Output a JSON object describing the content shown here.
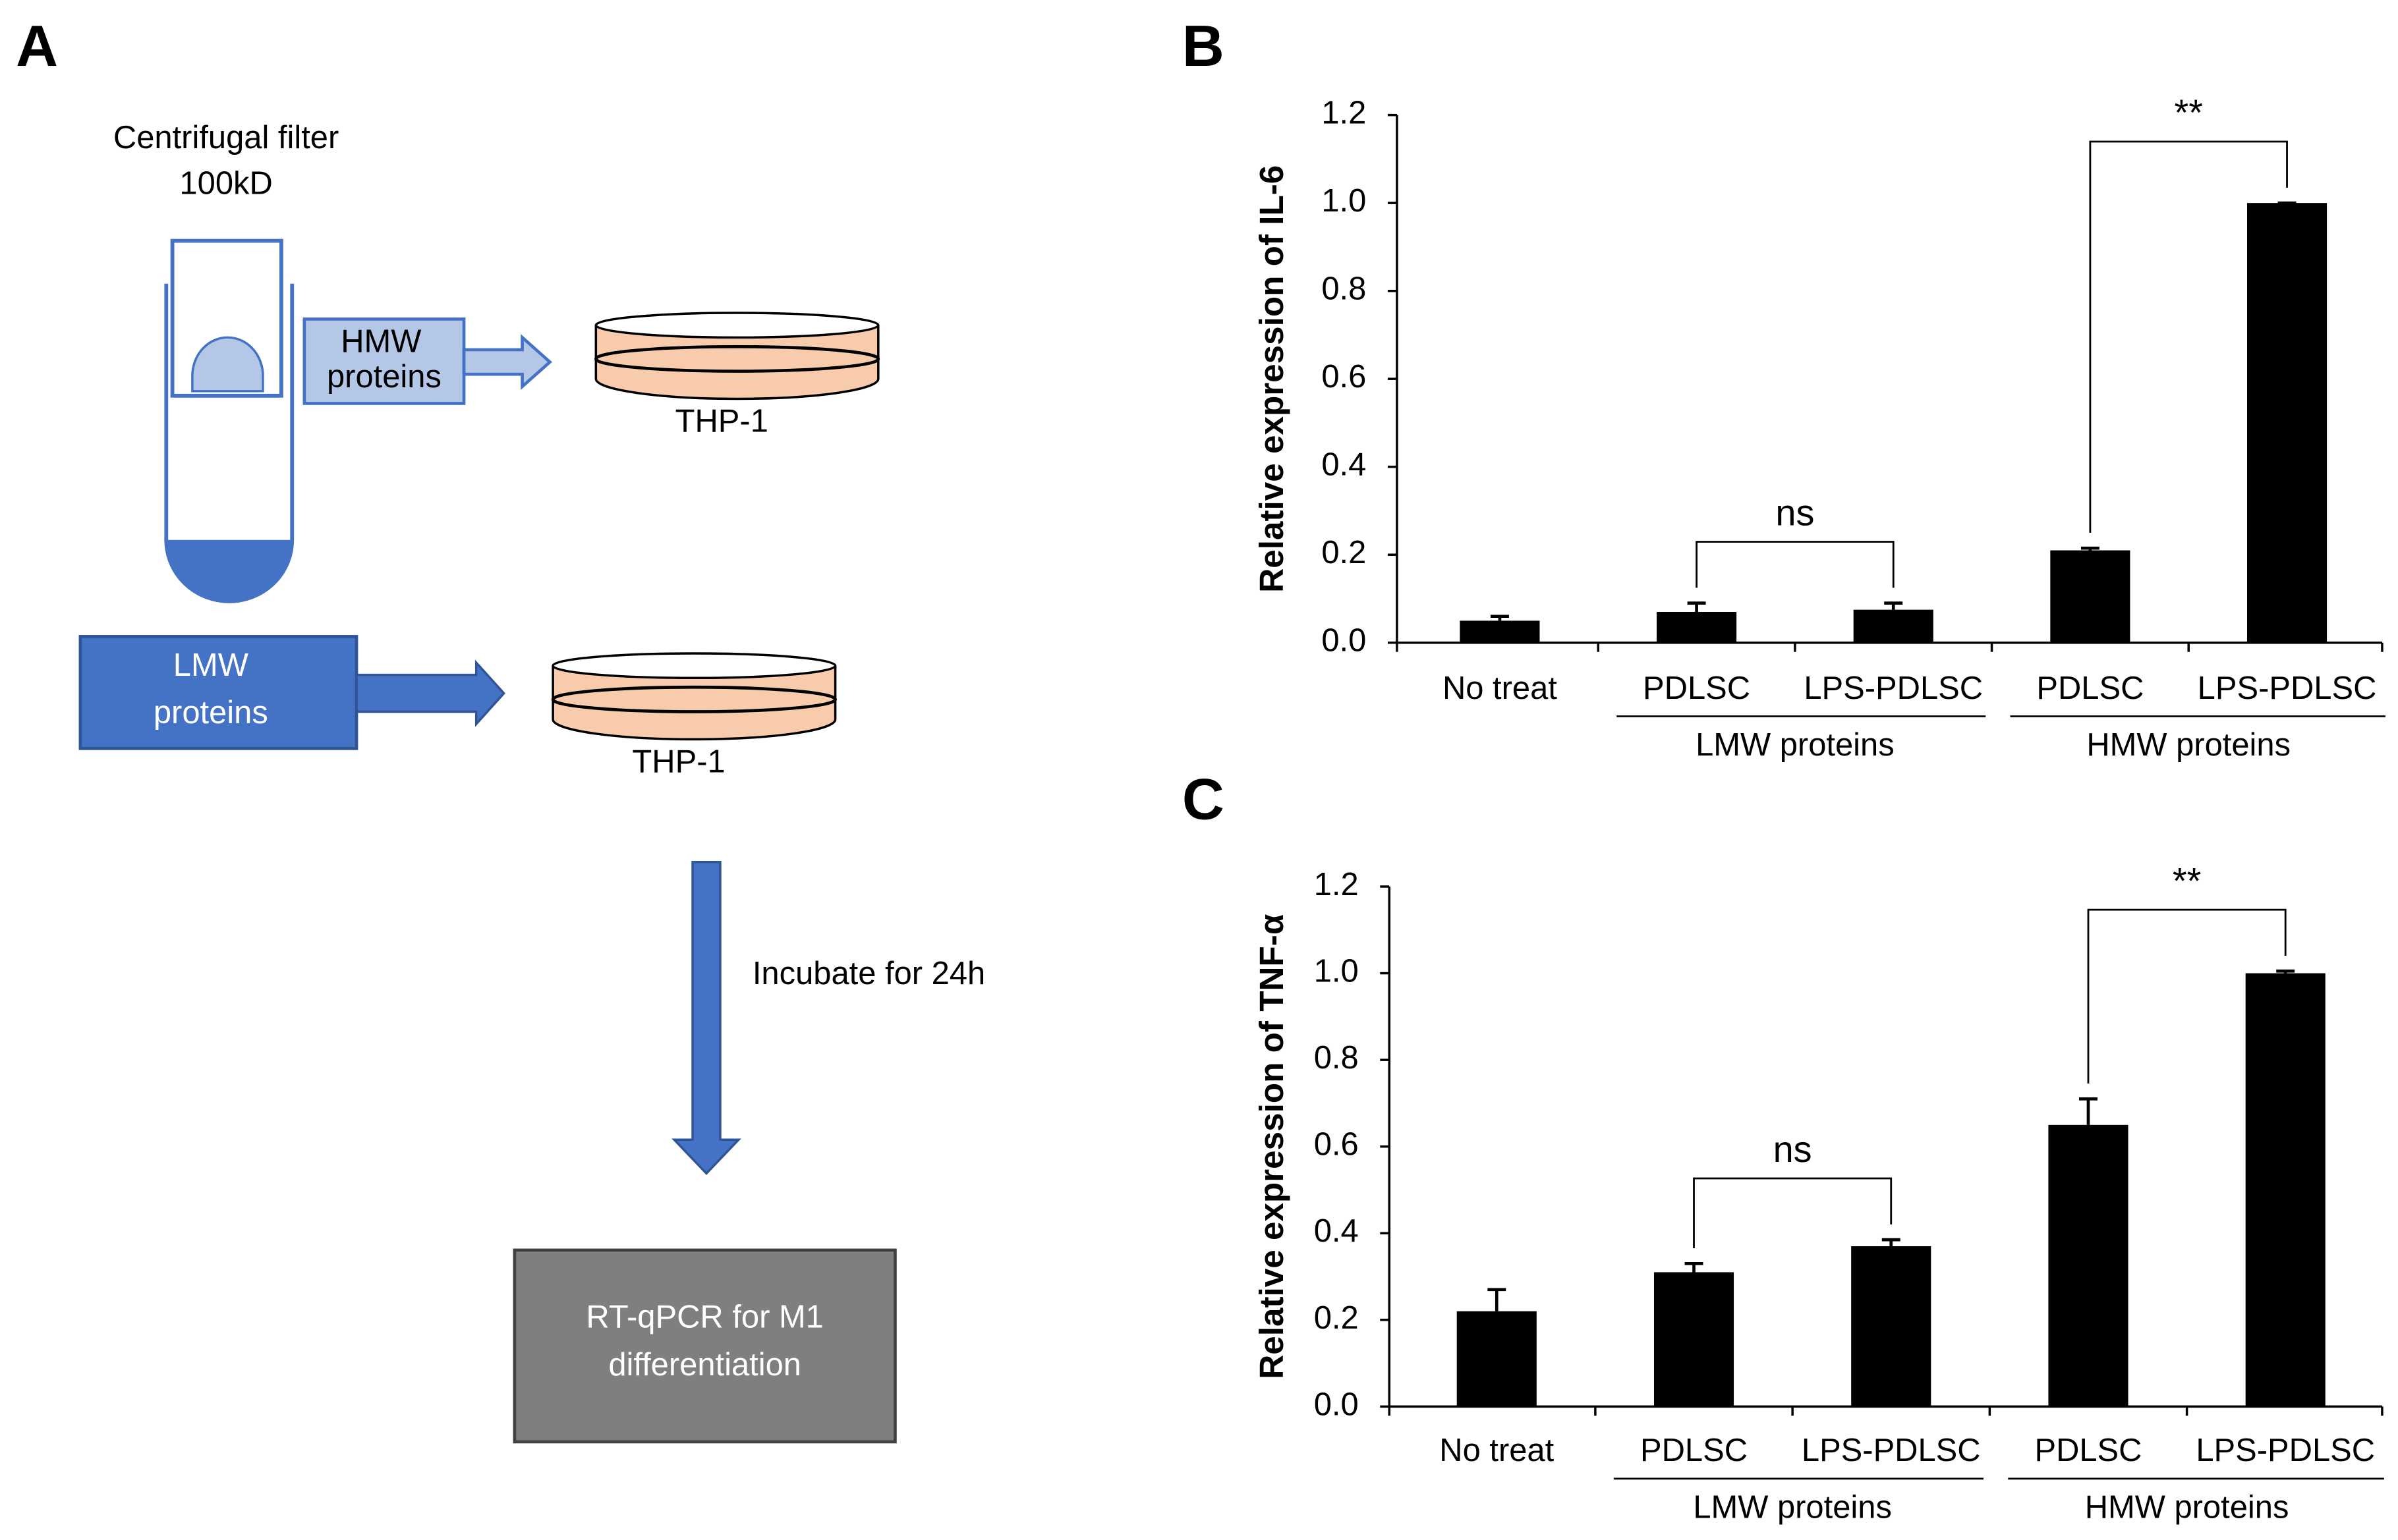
{
  "panel_labels": [
    "A",
    "B",
    "C"
  ],
  "diagram": {
    "filter_label": [
      "Centrifugal filter",
      "100kD"
    ],
    "hmw_label": [
      "HMW",
      "proteins"
    ],
    "lmw_label": [
      "LMW",
      "proteins"
    ],
    "cell_labels": [
      "THP-1",
      "THP-1"
    ],
    "step_label": "Incubate for 24h",
    "assay_label": [
      "RT-qPCR for M1",
      "differentiation"
    ]
  },
  "chart_data": [
    {
      "type": "bar",
      "y_label": "Relative expression of IL-6",
      "categories": [
        "No treat",
        "PDLSC",
        "LPS-PDLSC",
        "PDLSC",
        "LPS-PDLSC"
      ],
      "category_groups": [
        null,
        "LMW proteins",
        "LMW proteins",
        "HMW proteins",
        "HMW proteins"
      ],
      "values": [
        0.05,
        0.07,
        0.075,
        0.21,
        1.0
      ],
      "errors": [
        0.01,
        0.02,
        0.015,
        0.005,
        0.0
      ],
      "color": "#000000",
      "ylim": [
        0,
        1.2
      ],
      "yticks": [
        {
          "value": 0,
          "label": "0.0"
        },
        0.2,
        0.4,
        0.6,
        0.8,
        {
          "value": 1,
          "label": "1.0"
        },
        1.2
      ],
      "annotations": [
        {
          "text": "ns",
          "between": [
            1,
            2
          ]
        },
        {
          "text": "**",
          "between": [
            3,
            4
          ]
        }
      ]
    },
    {
      "type": "bar",
      "y_label": "Relative expression of TNF-α",
      "categories": [
        "No treat",
        "PDLSC",
        "LPS-PDLSC",
        "PDLSC",
        "LPS-PDLSC"
      ],
      "category_groups": [
        null,
        "LMW proteins",
        "LMW proteins",
        "HMW proteins",
        "HMW proteins"
      ],
      "values": [
        0.22,
        0.31,
        0.37,
        0.65,
        1.0
      ],
      "errors": [
        0.05,
        0.02,
        0.015,
        0.06,
        0.005
      ],
      "color": "#000000",
      "ylim": [
        0,
        1.2
      ],
      "yticks": [
        {
          "value": 0,
          "label": "0.0"
        },
        0.2,
        0.4,
        0.6,
        0.8,
        {
          "value": 1,
          "label": "1.0"
        },
        1.2
      ],
      "annotations": [
        {
          "text": "ns",
          "between": [
            1,
            2
          ]
        },
        {
          "text": "**",
          "between": [
            3,
            4
          ]
        }
      ]
    }
  ]
}
